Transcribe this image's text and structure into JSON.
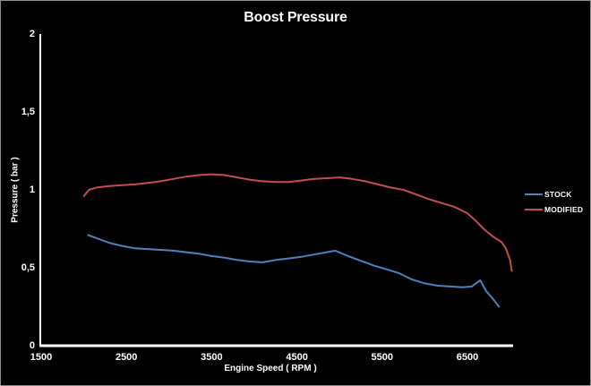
{
  "chart_data": {
    "type": "line",
    "title": "Boost Pressure",
    "xlabel": "Engine Speed ( RPM )",
    "ylabel": "Pressure ( bar )",
    "xlim": [
      1500,
      7050
    ],
    "ylim": [
      0,
      2
    ],
    "grid": false,
    "legend_position": "right",
    "background_color": "#000000",
    "axis_color": "#ffffff",
    "x_ticks": [
      {
        "label": "1500",
        "value": 1500
      },
      {
        "label": "2500",
        "value": 2500
      },
      {
        "label": "3500",
        "value": 3500
      },
      {
        "label": "4500",
        "value": 4500
      },
      {
        "label": "5500",
        "value": 5500
      },
      {
        "label": "6500",
        "value": 6500
      }
    ],
    "y_ticks": [
      {
        "label": "0",
        "value": 0
      },
      {
        "label": "0,5",
        "value": 0.5
      },
      {
        "label": "1",
        "value": 1
      },
      {
        "label": "1,5",
        "value": 1.5
      },
      {
        "label": "2",
        "value": 2
      }
    ],
    "series": [
      {
        "name": "STOCK",
        "color": "#4F81BD",
        "points": [
          [
            2050,
            0.71
          ],
          [
            2150,
            0.69
          ],
          [
            2300,
            0.66
          ],
          [
            2450,
            0.64
          ],
          [
            2600,
            0.625
          ],
          [
            2750,
            0.62
          ],
          [
            2900,
            0.615
          ],
          [
            3050,
            0.61
          ],
          [
            3200,
            0.6
          ],
          [
            3350,
            0.59
          ],
          [
            3500,
            0.575
          ],
          [
            3650,
            0.565
          ],
          [
            3800,
            0.55
          ],
          [
            3950,
            0.54
          ],
          [
            4100,
            0.535
          ],
          [
            4250,
            0.55
          ],
          [
            4400,
            0.56
          ],
          [
            4550,
            0.57
          ],
          [
            4700,
            0.585
          ],
          [
            4850,
            0.6
          ],
          [
            4950,
            0.61
          ],
          [
            5100,
            0.575
          ],
          [
            5250,
            0.545
          ],
          [
            5400,
            0.515
          ],
          [
            5550,
            0.49
          ],
          [
            5700,
            0.465
          ],
          [
            5850,
            0.425
          ],
          [
            6000,
            0.4
          ],
          [
            6150,
            0.385
          ],
          [
            6300,
            0.38
          ],
          [
            6450,
            0.375
          ],
          [
            6550,
            0.38
          ],
          [
            6650,
            0.42
          ],
          [
            6720,
            0.35
          ],
          [
            6800,
            0.3
          ],
          [
            6870,
            0.25
          ]
        ]
      },
      {
        "name": "MODIFIED",
        "color": "#C0504D",
        "points": [
          [
            2000,
            0.96
          ],
          [
            2060,
            1.0
          ],
          [
            2150,
            1.015
          ],
          [
            2300,
            1.025
          ],
          [
            2450,
            1.03
          ],
          [
            2600,
            1.035
          ],
          [
            2750,
            1.045
          ],
          [
            2900,
            1.055
          ],
          [
            3050,
            1.07
          ],
          [
            3200,
            1.085
          ],
          [
            3350,
            1.095
          ],
          [
            3500,
            1.1
          ],
          [
            3650,
            1.095
          ],
          [
            3800,
            1.08
          ],
          [
            3950,
            1.065
          ],
          [
            4100,
            1.055
          ],
          [
            4250,
            1.05
          ],
          [
            4400,
            1.05
          ],
          [
            4550,
            1.06
          ],
          [
            4700,
            1.07
          ],
          [
            4850,
            1.075
          ],
          [
            5000,
            1.08
          ],
          [
            5150,
            1.07
          ],
          [
            5300,
            1.055
          ],
          [
            5450,
            1.035
          ],
          [
            5600,
            1.015
          ],
          [
            5750,
            1.0
          ],
          [
            5900,
            0.97
          ],
          [
            6050,
            0.94
          ],
          [
            6200,
            0.915
          ],
          [
            6350,
            0.89
          ],
          [
            6500,
            0.85
          ],
          [
            6600,
            0.8
          ],
          [
            6700,
            0.745
          ],
          [
            6800,
            0.7
          ],
          [
            6900,
            0.665
          ],
          [
            6950,
            0.625
          ],
          [
            7000,
            0.55
          ],
          [
            7020,
            0.48
          ]
        ]
      }
    ]
  }
}
